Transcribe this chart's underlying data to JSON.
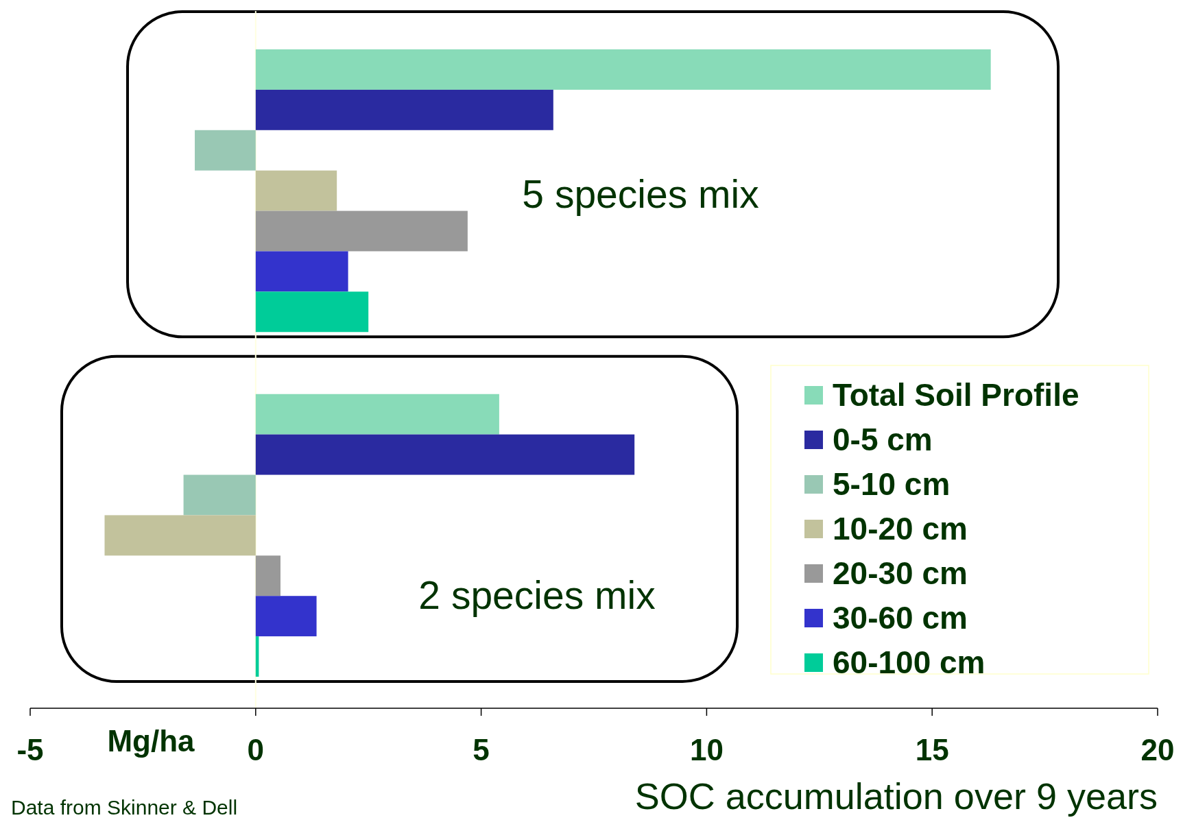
{
  "chart_data": {
    "type": "bar",
    "orientation": "horizontal",
    "xlabel": "SOC accumulation over 9 years",
    "categories": [
      "5 species mix",
      "2 species mix"
    ],
    "series": [
      {
        "name": "Total Soil Profile",
        "color": "#88dbb8",
        "values": [
          16.3,
          5.4
        ]
      },
      {
        "name": "0-5 cm",
        "color": "#2a2aa0",
        "values": [
          6.6,
          8.4
        ]
      },
      {
        "name": "5-10 cm",
        "color": "#99c8b4",
        "values": [
          -1.35,
          -1.6
        ]
      },
      {
        "name": "10-20 cm",
        "color": "#c2c29c",
        "values": [
          1.8,
          -3.35
        ]
      },
      {
        "name": "20-30 cm",
        "color": "#999999",
        "values": [
          4.7,
          0.55
        ]
      },
      {
        "name": "30-60 cm",
        "color": "#3333cc",
        "values": [
          2.05,
          1.35
        ]
      },
      {
        "name": "60-100 cm",
        "color": "#00cc99",
        "values": [
          2.5,
          0.07
        ]
      }
    ],
    "xlim": [
      -5,
      20
    ],
    "xticks": [
      -5,
      0,
      5,
      10,
      15,
      20
    ],
    "legend": "bottom right",
    "annotations": [
      "Mg/ha",
      "Data from Skinner & Dell"
    ]
  }
}
